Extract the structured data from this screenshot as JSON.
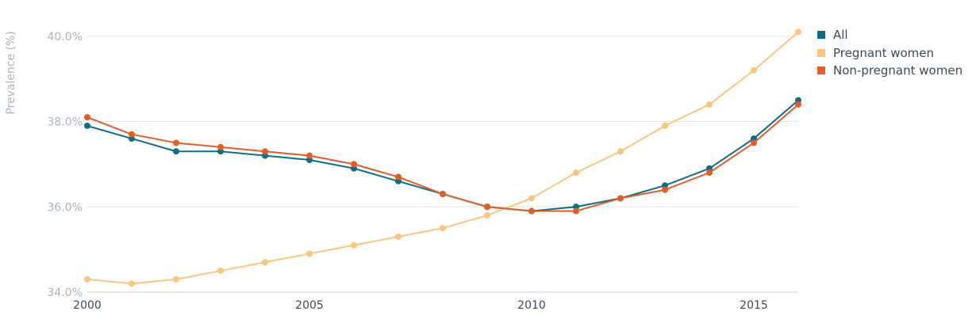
{
  "chart_data": {
    "type": "line",
    "title": "",
    "xlabel": "",
    "ylabel": "Prevalence (%)",
    "x": [
      2000,
      2001,
      2002,
      2003,
      2004,
      2005,
      2006,
      2007,
      2008,
      2009,
      2010,
      2011,
      2012,
      2013,
      2014,
      2015,
      2016
    ],
    "xticks": [
      "2000",
      "2005",
      "2010",
      "2015"
    ],
    "yticks": [
      "34.0%",
      "36.0%",
      "38.0%",
      "40.0%"
    ],
    "ylim": [
      34,
      40.2
    ],
    "xlim": [
      2000,
      2016
    ],
    "grid": true,
    "legend_position": "top-right",
    "series": [
      {
        "name": "All",
        "color": "#0e6e86",
        "values": [
          37.9,
          37.6,
          37.3,
          37.3,
          37.2,
          37.1,
          36.9,
          36.6,
          36.3,
          36.0,
          35.9,
          36.0,
          36.2,
          36.5,
          36.9,
          37.6,
          38.5
        ]
      },
      {
        "name": "Pregnant women",
        "color": "#fcc57c",
        "values": [
          34.3,
          34.2,
          34.3,
          34.5,
          34.7,
          34.9,
          35.1,
          35.3,
          35.5,
          35.8,
          36.2,
          36.8,
          37.3,
          37.9,
          38.4,
          39.2,
          40.1
        ]
      },
      {
        "name": "Non-pregnant women",
        "color": "#e35d26",
        "values": [
          38.1,
          37.7,
          37.5,
          37.4,
          37.3,
          37.2,
          37.0,
          36.7,
          36.3,
          36.0,
          35.9,
          35.9,
          36.2,
          36.4,
          36.8,
          37.5,
          38.4
        ]
      }
    ]
  }
}
